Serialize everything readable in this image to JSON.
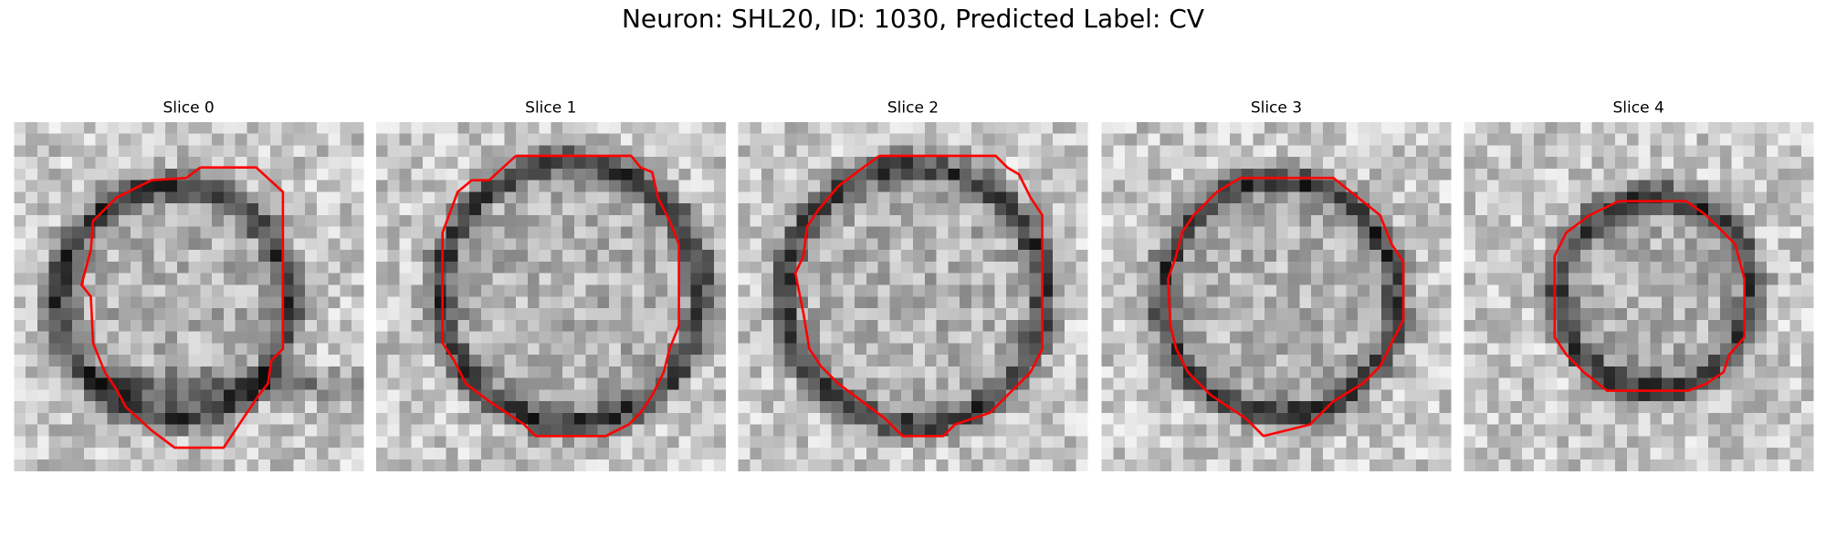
{
  "title": "Neuron: SHL20, ID: 1030, Predicted Label: CV",
  "panels": [
    {
      "title": "Slice 0"
    },
    {
      "title": "Slice 1"
    },
    {
      "title": "Slice 2"
    },
    {
      "title": "Slice 3"
    },
    {
      "title": "Slice 4"
    }
  ]
}
